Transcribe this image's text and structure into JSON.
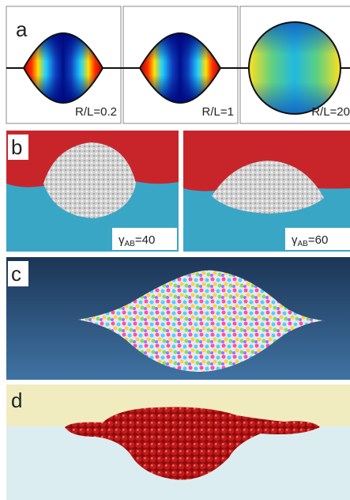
{
  "panels": [
    {
      "label": "a",
      "captions": [
        "R/L=0.2",
        "R/L=1",
        "R/L=20"
      ]
    },
    {
      "label": "b",
      "captions": [
        {
          "symbol": "γ",
          "subscript": "AB",
          "text": "=40"
        },
        {
          "symbol": "γ",
          "subscript": "AB",
          "text": "=60"
        }
      ]
    },
    {
      "label": "c"
    },
    {
      "label": "d"
    }
  ]
}
